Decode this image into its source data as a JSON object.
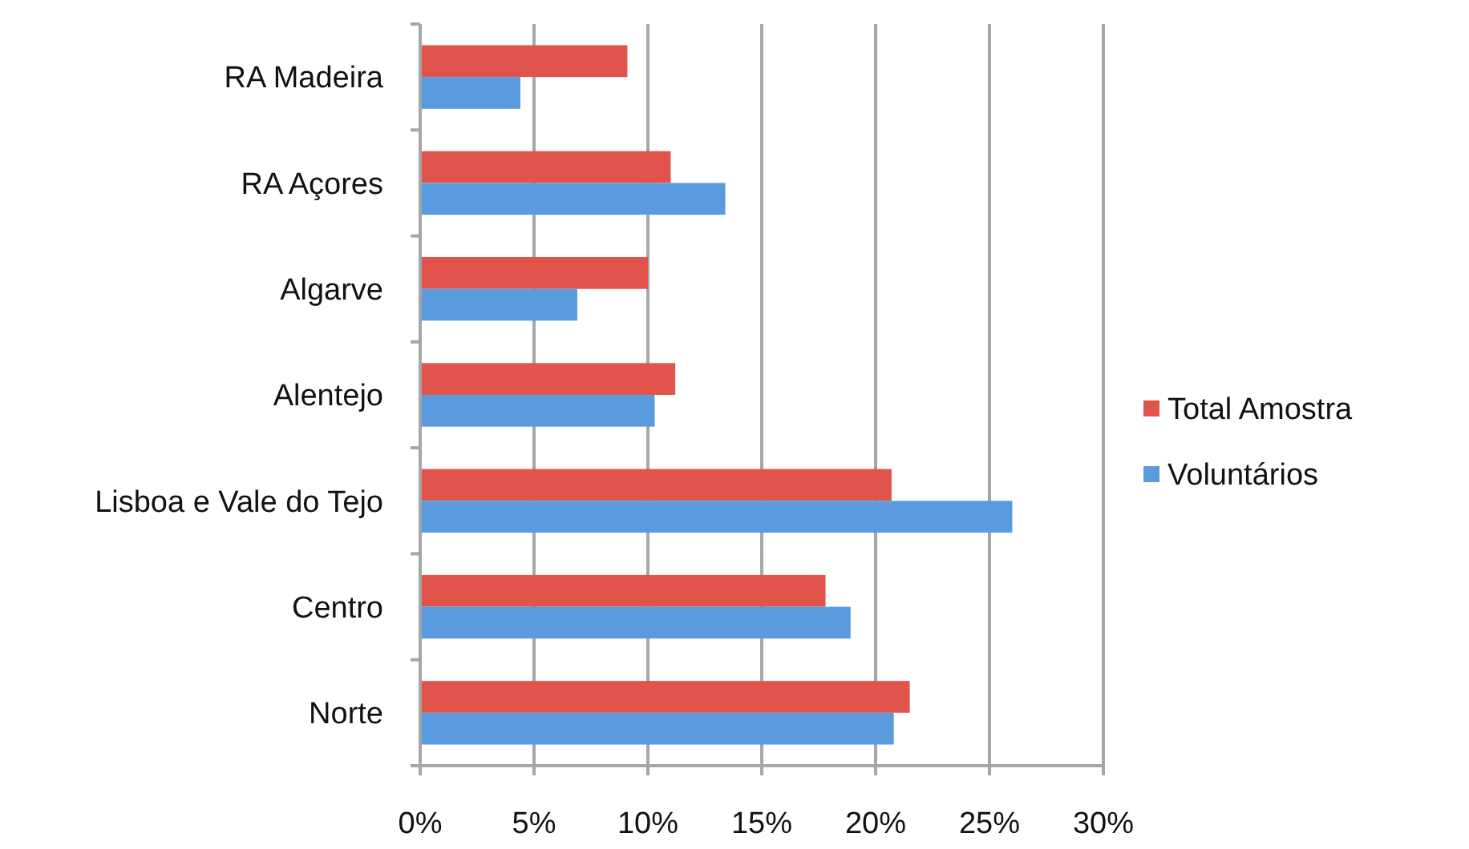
{
  "chart_data": {
    "type": "bar",
    "orientation": "horizontal",
    "categories": [
      "RA Madeira",
      "RA Açores",
      "Algarve",
      "Alentejo",
      "Lisboa e Vale do Tejo",
      "Centro",
      "Norte"
    ],
    "series": [
      {
        "name": "Total Amostra",
        "color": "#e0544c",
        "values": [
          9.1,
          11.0,
          10.0,
          11.2,
          20.7,
          17.8,
          21.5
        ]
      },
      {
        "name": "Voluntários",
        "color": "#5a9be0",
        "values": [
          4.4,
          13.4,
          6.9,
          10.3,
          26.0,
          18.9,
          20.8
        ]
      }
    ],
    "xlim": [
      0,
      30
    ],
    "xticks": [
      {
        "value": 0,
        "label": "0%"
      },
      {
        "value": 5,
        "label": "5%"
      },
      {
        "value": 10,
        "label": "10%"
      },
      {
        "value": 15,
        "label": "15%"
      },
      {
        "value": 20,
        "label": "20%"
      },
      {
        "value": 25,
        "label": "25%"
      },
      {
        "value": 30,
        "label": "30%"
      }
    ],
    "grid": "x",
    "legend": "right"
  }
}
